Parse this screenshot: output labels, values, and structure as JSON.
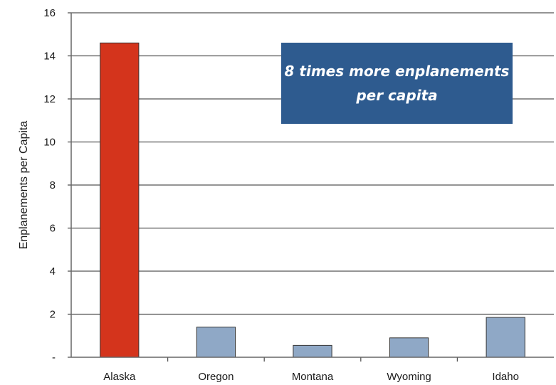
{
  "chart_data": {
    "type": "bar",
    "title": "",
    "xlabel": "",
    "ylabel": "Enplanements per Capita",
    "ylim": [
      0,
      16
    ],
    "yticks": [
      {
        "value": 0,
        "label": "-"
      },
      {
        "value": 2,
        "label": "2"
      },
      {
        "value": 4,
        "label": "4"
      },
      {
        "value": 6,
        "label": "6"
      },
      {
        "value": 8,
        "label": "8"
      },
      {
        "value": 10,
        "label": "10"
      },
      {
        "value": 12,
        "label": "12"
      },
      {
        "value": 14,
        "label": "14"
      },
      {
        "value": 16,
        "label": "16"
      }
    ],
    "categories": [
      "Alaska",
      "Oregon",
      "Montana",
      "Wyoming",
      "Idaho"
    ],
    "values": [
      14.6,
      1.4,
      0.55,
      0.9,
      1.85
    ],
    "colors": [
      "#d4341c",
      "#8fa8c6",
      "#8fa8c6",
      "#8fa8c6",
      "#8fa8c6"
    ],
    "grid": true,
    "annotation": {
      "line1": "8 times more enplanements",
      "line2": "per capita",
      "background": "#2e5b8f"
    }
  }
}
